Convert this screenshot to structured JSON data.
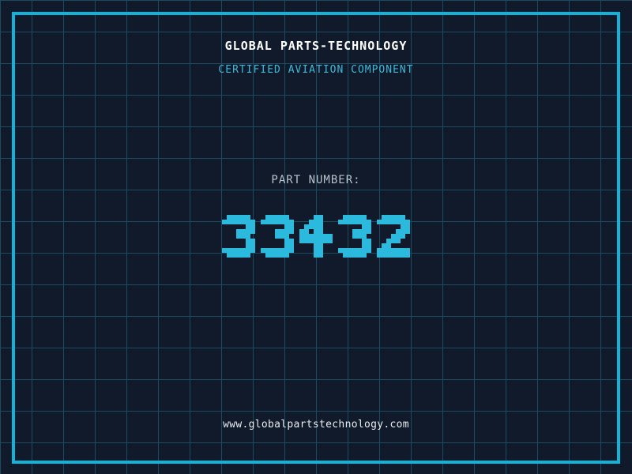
{
  "header": {
    "title": "GLOBAL PARTS-TECHNOLOGY",
    "subtitle": "CERTIFIED AVIATION COMPONENT"
  },
  "part": {
    "label": "PART NUMBER:",
    "number": "33432"
  },
  "footer": {
    "website": "www.globalpartstechnology.com"
  },
  "colors": {
    "background": "#101a2a",
    "grid_line": "#1c4a61",
    "frame": "#12b3d9",
    "title": "#ffffff",
    "subtitle": "#3fb9d9",
    "part_label": "#b9c3cb",
    "part_number": "#2bbade",
    "website": "#e9edf0"
  }
}
